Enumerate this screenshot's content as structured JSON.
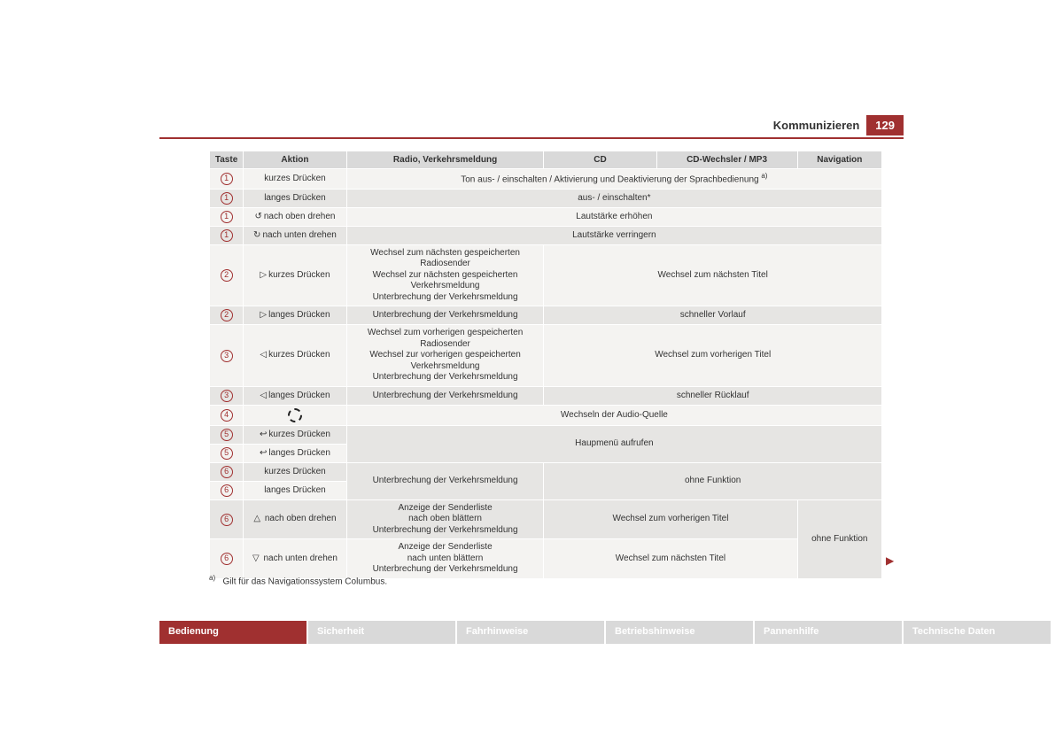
{
  "header": {
    "section": "Kommunizieren",
    "page": "129"
  },
  "columns": [
    "Taste",
    "Aktion",
    "Radio, Verkehrsmeldung",
    "CD",
    "CD-Wechsler / MP3",
    "Navigation"
  ],
  "glyphs": {
    "turn_up": "↺",
    "turn_down": "↻",
    "fwd": "▷",
    "back": "◁",
    "return": "↩",
    "up": "△",
    "down": "▽"
  },
  "rows": {
    "r1": {
      "taste": "1",
      "aktion": "kurzes Drücken",
      "span": "Ton aus- / einschalten / Aktivierung und Deaktivierung der Sprachbedienung",
      "fn": "a)"
    },
    "r2": {
      "taste": "1",
      "aktion": "langes Drücken",
      "span": "aus- / einschalten*"
    },
    "r3": {
      "taste": "1",
      "aktion": "nach oben drehen",
      "span": "Lautstärke erhöhen"
    },
    "r4": {
      "taste": "1",
      "aktion": "nach unten drehen",
      "span": "Lautstärke verringern"
    },
    "r5": {
      "taste": "2",
      "aktion": "kurzes Drücken",
      "radio": "Wechsel zum nächsten gespeicherten Radiosender\nWechsel zur nächsten gespeicherten Verkehrsmeldung\nUnterbrechung der Verkehrsmeldung",
      "cds": "Wechsel zum nächsten Titel"
    },
    "r6": {
      "taste": "2",
      "aktion": "langes Drücken",
      "radio": "Unterbrechung der Verkehrsmeldung",
      "cds": "schneller Vorlauf"
    },
    "r7": {
      "taste": "3",
      "aktion": "kurzes Drücken",
      "radio": "Wechsel zum vorherigen gespeicherten Radiosender\nWechsel zur vorherigen gespeicherten Verkehrsmeldung\nUnterbrechung der Verkehrsmeldung",
      "cds": "Wechsel zum vorherigen Titel"
    },
    "r8": {
      "taste": "3",
      "aktion": "langes Drücken",
      "radio": "Unterbrechung der Verkehrsmeldung",
      "cds": "schneller Rücklauf"
    },
    "r9": {
      "taste": "4",
      "span": "Wechseln der Audio-Quelle"
    },
    "r10": {
      "taste": "5",
      "aktion": "kurzes Drücken"
    },
    "r11": {
      "taste": "5",
      "aktion": "langes Drücken"
    },
    "r10_11_span": "Haupmenü aufrufen",
    "r12": {
      "taste": "6",
      "aktion": "kurzes Drücken"
    },
    "r13": {
      "taste": "6",
      "aktion": "langes Drücken"
    },
    "r12_13_radio": "Unterbrechung der Verkehrsmeldung",
    "r12_13_cds": "ohne Funktion",
    "r14": {
      "taste": "6",
      "aktion": "nach oben drehen",
      "radio": "Anzeige der Senderliste\nnach oben blättern\nUnterbrechung der Verkehrsmeldung",
      "cds": "Wechsel zum vorherigen Titel"
    },
    "r15": {
      "taste": "6",
      "aktion": "nach unten drehen",
      "radio": "Anzeige der Senderliste\nnach unten blättern\nUnterbrechung der Verkehrsmeldung",
      "cds": "Wechsel zum nächsten Titel"
    },
    "r12_15_nav": "ohne Funktion"
  },
  "footnote": {
    "mark": "a)",
    "text": "Gilt für das Navigationssystem Columbus."
  },
  "tabs": [
    "Bedienung",
    "Sicherheit",
    "Fahrhinweise",
    "Betriebshinweise",
    "Pannenhilfe",
    "Technische Daten"
  ],
  "colors": {
    "accent": "#a03030",
    "odd": "#f4f3f1",
    "even": "#e6e5e3",
    "header": "#d9d9d9",
    "tabInactive": "#d9d9d9"
  }
}
